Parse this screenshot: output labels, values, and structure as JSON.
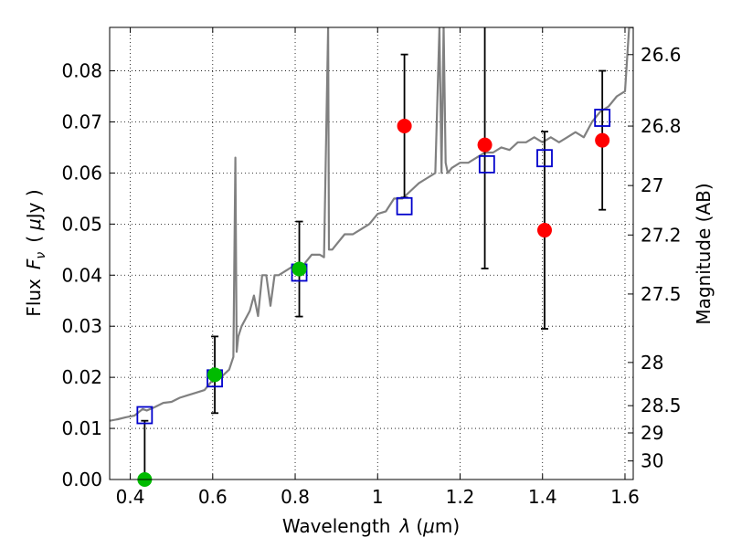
{
  "chart_data": {
    "type": "scatter",
    "xlabel": "Wavelength",
    "xlabel_symbol": "λ",
    "xlabel_unit_open": "(",
    "xlabel_unit_mu": "μ",
    "xlabel_unit_rest": "m)",
    "ylabel_left": "Flux",
    "ylabel_left_sym": "F",
    "ylabel_left_sub": "ν",
    "ylabel_left_unit_open": "(",
    "ylabel_left_unit_mu": "μ",
    "ylabel_left_unit_rest": "Jy )",
    "ylabel_right": "Magnitude (AB)",
    "xlim": [
      0.35,
      1.62
    ],
    "ylim": [
      0.0,
      0.0885
    ],
    "grid": true,
    "x_ticks": [
      0.4,
      0.6,
      0.8,
      1.0,
      1.2,
      1.4,
      1.6
    ],
    "x_tick_labels": [
      "0.4",
      "0.6",
      "0.8",
      "1",
      "1.2",
      "1.4",
      "1.6"
    ],
    "y_ticks": [
      0.0,
      0.01,
      0.02,
      0.03,
      0.04,
      0.05,
      0.06,
      0.07,
      0.08
    ],
    "y_tick_labels": [
      "0.00",
      "0.01",
      "0.02",
      "0.03",
      "0.04",
      "0.05",
      "0.06",
      "0.07",
      "0.08"
    ],
    "right_ticks": [
      26.6,
      26.8,
      27,
      27.2,
      27.5,
      28,
      28.5,
      29,
      30
    ],
    "right_tick_labels": [
      "26.6",
      "26.8",
      "27",
      "27.2",
      "27.5",
      "28",
      "28.5",
      "29",
      "30"
    ],
    "spectrum": {
      "name": "model spectrum",
      "color": "#808080",
      "x": [
        0.35,
        0.37,
        0.39,
        0.41,
        0.43,
        0.44,
        0.46,
        0.48,
        0.5,
        0.52,
        0.54,
        0.56,
        0.58,
        0.6,
        0.62,
        0.64,
        0.65,
        0.655,
        0.658,
        0.662,
        0.67,
        0.69,
        0.7,
        0.71,
        0.72,
        0.73,
        0.74,
        0.75,
        0.76,
        0.78,
        0.8,
        0.82,
        0.84,
        0.86,
        0.87,
        0.88,
        0.882,
        0.885,
        0.89,
        0.9,
        0.92,
        0.94,
        0.96,
        0.98,
        1.0,
        1.02,
        1.04,
        1.06,
        1.08,
        1.1,
        1.12,
        1.14,
        1.15,
        1.155,
        1.16,
        1.165,
        1.17,
        1.18,
        1.2,
        1.22,
        1.24,
        1.26,
        1.28,
        1.3,
        1.32,
        1.34,
        1.36,
        1.38,
        1.4,
        1.42,
        1.44,
        1.46,
        1.48,
        1.5,
        1.52,
        1.54,
        1.56,
        1.58,
        1.6,
        1.61,
        1.62
      ],
      "y": [
        0.0115,
        0.0118,
        0.0122,
        0.0125,
        0.0138,
        0.0135,
        0.0142,
        0.015,
        0.0152,
        0.016,
        0.0165,
        0.017,
        0.0175,
        0.0195,
        0.02,
        0.0215,
        0.024,
        0.063,
        0.025,
        0.028,
        0.03,
        0.033,
        0.036,
        0.032,
        0.04,
        0.04,
        0.034,
        0.04,
        0.04,
        0.041,
        0.042,
        0.042,
        0.044,
        0.044,
        0.0435,
        0.0885,
        0.045,
        0.045,
        0.045,
        0.046,
        0.048,
        0.048,
        0.049,
        0.05,
        0.052,
        0.0525,
        0.055,
        0.055,
        0.0565,
        0.058,
        0.059,
        0.06,
        0.0885,
        0.06,
        0.0885,
        0.062,
        0.06,
        0.061,
        0.062,
        0.062,
        0.063,
        0.064,
        0.064,
        0.065,
        0.0645,
        0.066,
        0.066,
        0.067,
        0.066,
        0.067,
        0.066,
        0.067,
        0.068,
        0.067,
        0.07,
        0.072,
        0.073,
        0.075,
        0.076,
        0.0885,
        0.0885
      ]
    },
    "model_points": {
      "name": "model photometry",
      "color": "#0000cc",
      "marker": "open-square",
      "x": [
        0.435,
        0.605,
        0.81,
        1.065,
        1.265,
        1.405,
        1.545
      ],
      "y": [
        0.0126,
        0.0198,
        0.0405,
        0.0535,
        0.0617,
        0.0629,
        0.0708
      ]
    },
    "observed_green": {
      "name": "observed (optical)",
      "color": "#00bb00",
      "marker": "filled-circle",
      "x": [
        0.435,
        0.605,
        0.81
      ],
      "y": [
        0.0,
        0.0205,
        0.0412
      ],
      "err": [
        0.0115,
        0.0075,
        0.0093
      ]
    },
    "observed_red": {
      "name": "observed (near-IR)",
      "color": "#ff0000",
      "marker": "filled-circle",
      "x": [
        1.065,
        1.26,
        1.405,
        1.545
      ],
      "y": [
        0.0692,
        0.0655,
        0.0488,
        0.0664
      ],
      "err": [
        0.014,
        0.0242,
        0.0193,
        0.0136
      ]
    }
  }
}
